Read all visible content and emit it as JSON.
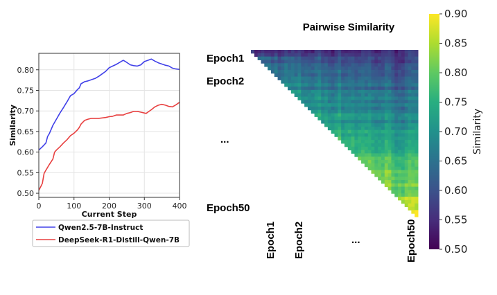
{
  "chart_data": [
    {
      "type": "line",
      "title": "",
      "xlabel": "Current Step",
      "ylabel": "Similarity",
      "xlim": [
        0,
        400
      ],
      "ylim": [
        0.49,
        0.84
      ],
      "x_ticks": [
        0,
        100,
        200,
        300,
        400
      ],
      "y_ticks": [
        0.5,
        0.55,
        0.6,
        0.65,
        0.7,
        0.75,
        0.8
      ],
      "grid": true,
      "legend_position": "below",
      "series": [
        {
          "name": "Qwen2.5-7B-Instruct",
          "color": "#4040e8",
          "x": [
            0,
            10,
            20,
            25,
            30,
            40,
            50,
            60,
            70,
            80,
            90,
            100,
            110,
            115,
            120,
            130,
            140,
            150,
            160,
            170,
            180,
            190,
            200,
            210,
            220,
            230,
            240,
            250,
            260,
            270,
            280,
            290,
            300,
            310,
            320,
            330,
            340,
            350,
            360,
            370,
            380,
            390,
            400
          ],
          "y": [
            0.605,
            0.613,
            0.622,
            0.638,
            0.645,
            0.665,
            0.68,
            0.695,
            0.708,
            0.722,
            0.737,
            0.742,
            0.752,
            0.756,
            0.766,
            0.771,
            0.773,
            0.776,
            0.779,
            0.784,
            0.79,
            0.796,
            0.805,
            0.809,
            0.813,
            0.818,
            0.823,
            0.818,
            0.812,
            0.81,
            0.809,
            0.812,
            0.82,
            0.823,
            0.826,
            0.821,
            0.817,
            0.814,
            0.811,
            0.809,
            0.804,
            0.802,
            0.801
          ]
        },
        {
          "name": "DeepSeek-R1-Distill-Qwen-7B",
          "color": "#e84040",
          "x": [
            0,
            5,
            10,
            15,
            20,
            30,
            40,
            45,
            50,
            60,
            70,
            80,
            90,
            100,
            110,
            115,
            120,
            130,
            140,
            150,
            160,
            170,
            180,
            190,
            200,
            210,
            220,
            230,
            240,
            250,
            260,
            270,
            280,
            290,
            300,
            305,
            310,
            320,
            330,
            340,
            350,
            360,
            370,
            380,
            390,
            400
          ],
          "y": [
            0.507,
            0.515,
            0.524,
            0.548,
            0.556,
            0.57,
            0.583,
            0.6,
            0.605,
            0.613,
            0.622,
            0.63,
            0.64,
            0.646,
            0.654,
            0.66,
            0.668,
            0.677,
            0.68,
            0.682,
            0.682,
            0.682,
            0.683,
            0.684,
            0.686,
            0.687,
            0.69,
            0.69,
            0.69,
            0.694,
            0.696,
            0.699,
            0.699,
            0.697,
            0.695,
            0.694,
            0.697,
            0.703,
            0.71,
            0.714,
            0.716,
            0.714,
            0.711,
            0.71,
            0.715,
            0.721
          ]
        }
      ]
    },
    {
      "type": "heatmap",
      "title": "Pairwise Similarity",
      "shape": "upper-triangle",
      "n": 50,
      "row_labels": [
        "Epoch1",
        "Epoch2",
        "...",
        "Epoch50"
      ],
      "col_labels": [
        "Epoch1",
        "Epoch2",
        "...",
        "Epoch50"
      ],
      "colorbar": {
        "label": "Similarity",
        "colormap": "viridis",
        "vmin": 0.5,
        "vmax": 0.9,
        "ticks": [
          "0.50",
          "0.55",
          "0.60",
          "0.65",
          "0.70",
          "0.75",
          "0.80",
          "0.85",
          "0.90"
        ]
      },
      "similarity_trend": {
        "near_first_epoch": 0.6,
        "near_diagonal_late": 0.86,
        "far_from_diagonal": 0.72
      }
    }
  ]
}
